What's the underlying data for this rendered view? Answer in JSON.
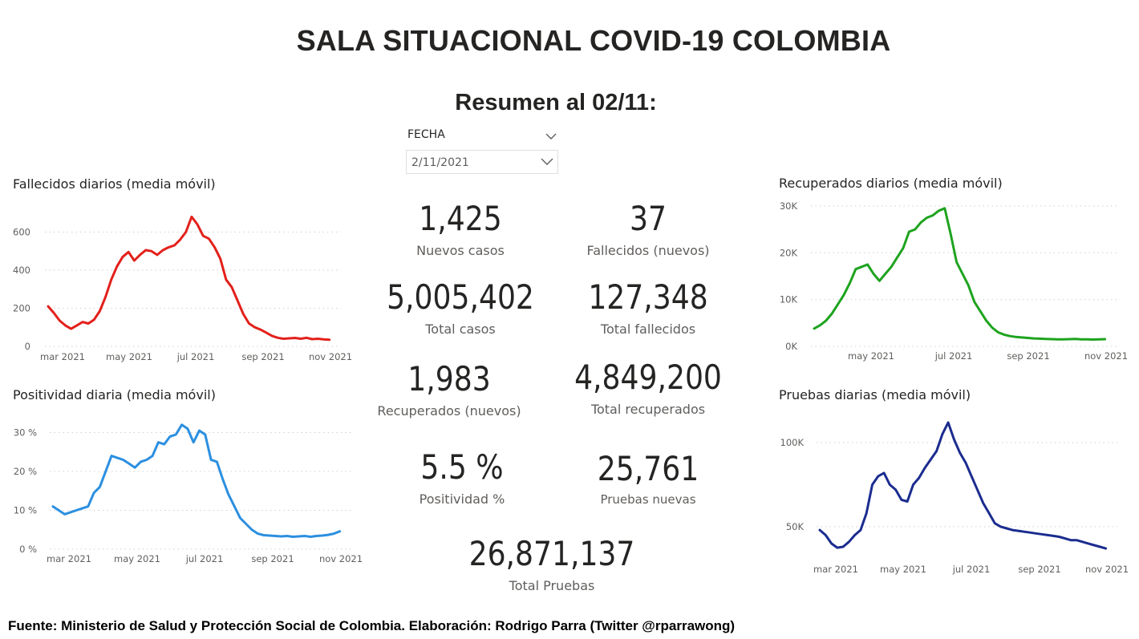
{
  "header": {
    "title": "SALA SITUACIONAL COVID-19 COLOMBIA",
    "subtitle": "Resumen al 02/11:"
  },
  "slicer": {
    "header_label": "FECHA",
    "selected_value": "2/11/2021",
    "icons": [
      "chevron-down-icon",
      "chevron-down-icon"
    ]
  },
  "kpis": {
    "nuevos_casos": {
      "value": "1,425",
      "label": "Nuevos casos"
    },
    "fallecidos_nuevos": {
      "value": "37",
      "label": "Fallecidos (nuevos)"
    },
    "total_casos": {
      "value": "5,005,402",
      "label": "Total casos"
    },
    "total_fallecidos": {
      "value": "127,348",
      "label": "Total fallecidos"
    },
    "recuperados_nuevos": {
      "value": "1,983",
      "label": "Recuperados (nuevos)"
    },
    "total_recuperados": {
      "value": "4,849,200",
      "label": "Total recuperados"
    },
    "positividad": {
      "value": "5.5 %",
      "label": "Positividad %"
    },
    "pruebas_nuevas": {
      "value": "25,761",
      "label": "Pruebas nuevas"
    },
    "total_pruebas": {
      "value": "26,871,137",
      "label": "Total Pruebas"
    }
  },
  "footer": {
    "text": "Fuente: Ministerio de Salud y Protección Social de Colombia. Elaboración: Rodrigo Parra (Twitter @rparrawong)"
  },
  "chart_data": [
    {
      "id": "fallecidos",
      "type": "line",
      "title": "Fallecidos diarios (media móvil)",
      "color": "#e3201b",
      "x_labels": [
        "mar 2021",
        "may 2021",
        "jul 2021",
        "sep 2021",
        "nov 2021"
      ],
      "y_ticks": [
        0,
        200,
        400,
        600
      ],
      "y_tick_labels": [
        "0",
        "200",
        "400",
        "600"
      ],
      "ylim": [
        0,
        690
      ],
      "x_range_days": [
        0,
        248
      ],
      "grid": true,
      "x": [
        0,
        5,
        10,
        15,
        20,
        25,
        30,
        35,
        40,
        45,
        50,
        55,
        60,
        65,
        70,
        75,
        80,
        85,
        90,
        95,
        100,
        105,
        110,
        115,
        120,
        125,
        130,
        135,
        140,
        145,
        150,
        155,
        160,
        165,
        170,
        175,
        180,
        185,
        190,
        195,
        200,
        205,
        210,
        215,
        220,
        225,
        230,
        235,
        240,
        245
      ],
      "values": [
        210,
        175,
        135,
        110,
        92,
        110,
        128,
        120,
        140,
        185,
        260,
        350,
        420,
        470,
        495,
        450,
        480,
        505,
        500,
        480,
        505,
        520,
        530,
        560,
        600,
        680,
        640,
        580,
        565,
        520,
        460,
        350,
        310,
        240,
        170,
        120,
        100,
        88,
        72,
        55,
        45,
        40,
        42,
        44,
        40,
        45,
        38,
        40,
        37,
        35
      ]
    },
    {
      "id": "positividad",
      "type": "line",
      "title": "Positividad diaria (media móvil)",
      "color": "#2b8fe0",
      "x_labels": [
        "mar 2021",
        "may 2021",
        "jul 2021",
        "sep 2021",
        "nov 2021"
      ],
      "y_ticks": [
        0,
        10,
        20,
        30
      ],
      "y_tick_labels": [
        "0 %",
        "10 %",
        "20 %",
        "30 %"
      ],
      "ylim": [
        0,
        33
      ],
      "x_range_days": [
        0,
        248
      ],
      "grid": true,
      "x": [
        0,
        5,
        10,
        15,
        20,
        25,
        30,
        35,
        40,
        45,
        50,
        55,
        60,
        65,
        70,
        75,
        80,
        85,
        90,
        95,
        100,
        105,
        110,
        115,
        120,
        125,
        130,
        135,
        140,
        145,
        150,
        155,
        160,
        165,
        170,
        175,
        180,
        185,
        190,
        195,
        200,
        205,
        210,
        215,
        220,
        225,
        230,
        235,
        240,
        245
      ],
      "values": [
        11,
        10,
        9,
        9.5,
        10,
        10.5,
        11,
        14.5,
        16,
        20,
        24,
        23.5,
        23,
        22,
        21,
        22.5,
        23,
        24,
        27.5,
        27,
        29,
        29.5,
        32,
        31,
        27.5,
        30.5,
        29.5,
        23,
        22.5,
        18,
        14,
        11,
        8,
        6.5,
        5,
        4,
        3.6,
        3.5,
        3.4,
        3.3,
        3.4,
        3.2,
        3.3,
        3.4,
        3.2,
        3.4,
        3.5,
        3.7,
        4,
        4.6
      ]
    },
    {
      "id": "recuperados",
      "type": "line",
      "title": "Recuperados diarios (media móvil)",
      "color": "#1ea31e",
      "x_labels": [
        "may 2021",
        "jul 2021",
        "sep 2021",
        "nov 2021"
      ],
      "y_ticks": [
        0,
        10000,
        20000,
        30000
      ],
      "y_tick_labels": [
        "0K",
        "10K",
        "20K",
        "30K"
      ],
      "ylim": [
        0,
        30500
      ],
      "x_range_days": [
        0,
        248
      ],
      "grid": true,
      "x": [
        0,
        5,
        10,
        15,
        20,
        25,
        30,
        35,
        40,
        45,
        50,
        55,
        60,
        65,
        70,
        75,
        80,
        85,
        90,
        95,
        100,
        105,
        110,
        115,
        120,
        125,
        130,
        135,
        140,
        145,
        150,
        155,
        160,
        165,
        170,
        175,
        180,
        185,
        190,
        195,
        200,
        205,
        210,
        215,
        220,
        225,
        230,
        235,
        240,
        245
      ],
      "values": [
        3800,
        4500,
        5500,
        7000,
        9000,
        11000,
        13500,
        16500,
        17000,
        17500,
        15500,
        14000,
        15500,
        17000,
        19000,
        21000,
        24500,
        25000,
        26500,
        27500,
        28000,
        29000,
        29500,
        24000,
        18000,
        15500,
        13000,
        9500,
        7500,
        5500,
        4000,
        3000,
        2500,
        2200,
        2000,
        1900,
        1800,
        1700,
        1650,
        1600,
        1550,
        1500,
        1500,
        1550,
        1600,
        1500,
        1500,
        1450,
        1500,
        1550
      ]
    },
    {
      "id": "pruebas",
      "type": "line",
      "title": "Pruebas diarias (media móvil)",
      "color": "#1b2c8f",
      "x_labels": [
        "mar 2021",
        "may 2021",
        "jul 2021",
        "sep 2021",
        "nov 2021"
      ],
      "y_ticks": [
        50000,
        100000
      ],
      "y_tick_labels": [
        "50K",
        "100K"
      ],
      "ylim": [
        28000,
        112000
      ],
      "x_range_days": [
        0,
        248
      ],
      "grid": true,
      "x": [
        0,
        5,
        10,
        15,
        20,
        25,
        30,
        35,
        40,
        45,
        50,
        55,
        60,
        65,
        70,
        75,
        80,
        85,
        90,
        95,
        100,
        105,
        110,
        115,
        120,
        125,
        130,
        135,
        140,
        145,
        150,
        155,
        160,
        165,
        170,
        175,
        180,
        185,
        190,
        195,
        200,
        205,
        210,
        215,
        220,
        225,
        230,
        235,
        240,
        245
      ],
      "values": [
        48000,
        45000,
        40000,
        37500,
        38000,
        41000,
        45000,
        48000,
        58000,
        75000,
        80000,
        82000,
        75000,
        72000,
        66000,
        65000,
        75000,
        79000,
        85000,
        90000,
        95000,
        105000,
        112000,
        102000,
        94000,
        88000,
        80000,
        72000,
        64000,
        58000,
        52000,
        50000,
        49000,
        48000,
        47500,
        47000,
        46500,
        46000,
        45500,
        45000,
        44500,
        44000,
        43000,
        42000,
        42000,
        41000,
        40000,
        39000,
        38000,
        37000
      ]
    }
  ]
}
